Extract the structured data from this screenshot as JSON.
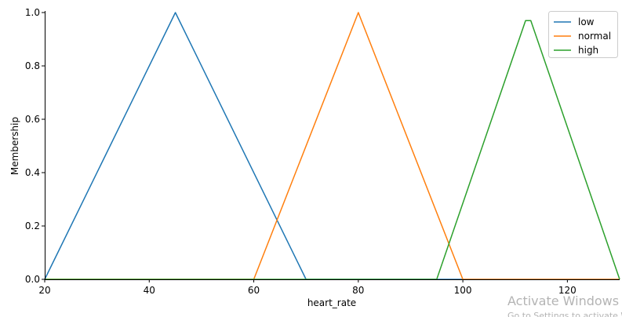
{
  "chart_data": {
    "type": "line",
    "xlabel": "heart_rate",
    "ylabel": "Membership",
    "xlim": [
      20,
      130
    ],
    "ylim": [
      0,
      1.0
    ],
    "xticks": [
      20,
      40,
      60,
      80,
      100,
      120
    ],
    "yticks": [
      0.0,
      0.2,
      0.4,
      0.6,
      0.8,
      1.0
    ],
    "xtick_labels": [
      "20",
      "40",
      "60",
      "80",
      "100",
      "120"
    ],
    "ytick_labels": [
      "0.0",
      "0.2",
      "0.4",
      "0.6",
      "0.8",
      "1.0"
    ],
    "legend_position": "top-right",
    "grid": false,
    "series": [
      {
        "name": "low",
        "color": "#1f77b4",
        "x": [
          20,
          45,
          70,
          130
        ],
        "y": [
          0,
          1,
          0,
          0
        ]
      },
      {
        "name": "normal",
        "color": "#ff7f0e",
        "x": [
          20,
          60,
          80,
          100,
          130
        ],
        "y": [
          0,
          0,
          1,
          0,
          0
        ]
      },
      {
        "name": "high",
        "color": "#2ca02c",
        "x": [
          20,
          95,
          112,
          113,
          130
        ],
        "y": [
          0,
          0,
          0.97,
          0.97,
          0
        ]
      }
    ]
  },
  "watermark": {
    "title": "Activate Windows",
    "subtitle": "Go to Settings to activate Windows."
  }
}
